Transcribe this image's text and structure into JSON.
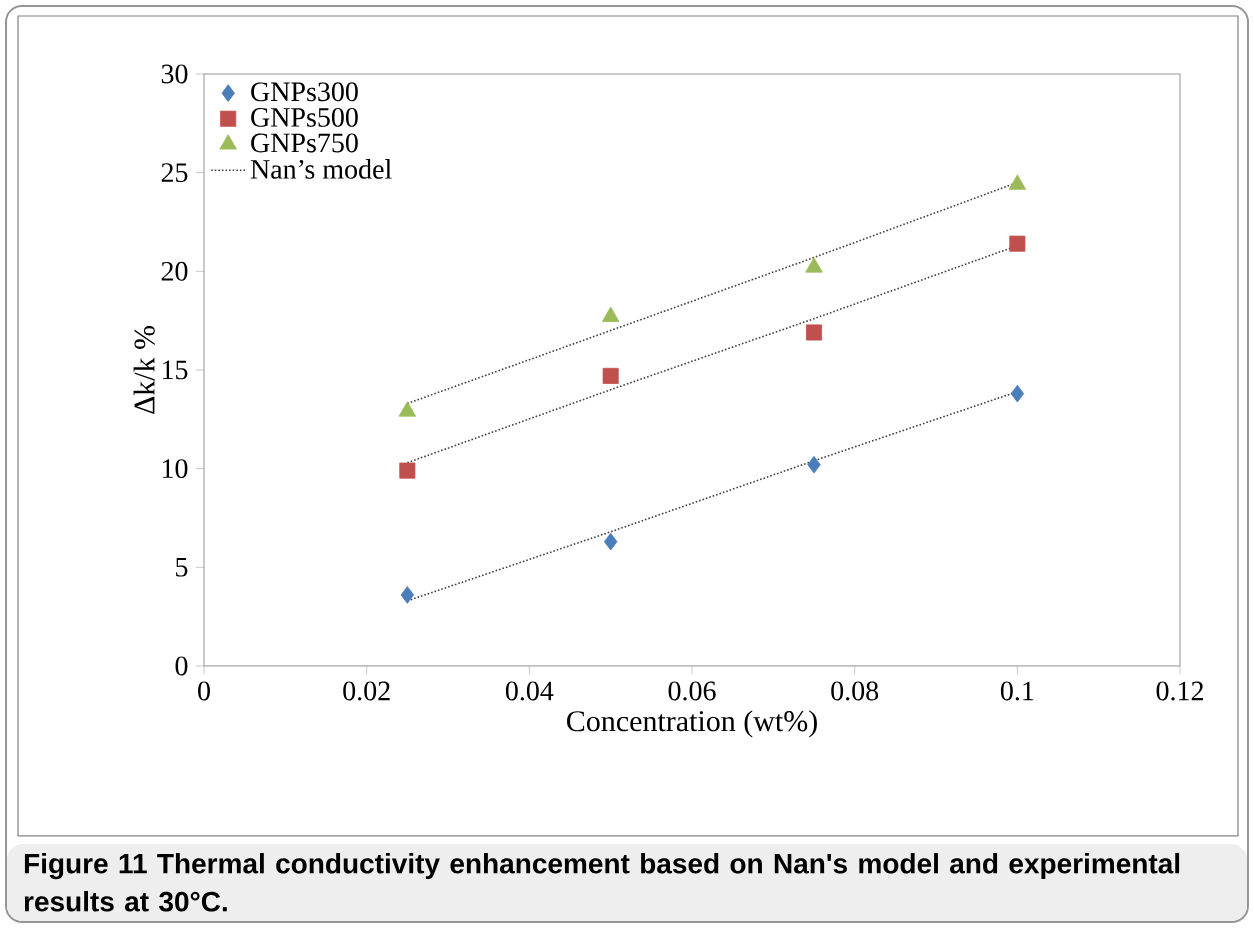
{
  "chart_data": {
    "type": "scatter",
    "xlabel": "Concentration (wt%)",
    "ylabel": "Δk/k %",
    "x": [
      0.025,
      0.05,
      0.075,
      0.1
    ],
    "series": [
      {
        "name": "GNPs300",
        "color": "#4a7ebb",
        "marker": "diamond",
        "values": [
          3.6,
          6.3,
          10.2,
          13.8
        ]
      },
      {
        "name": "GNPs500",
        "color": "#c0504d",
        "marker": "square",
        "values": [
          9.9,
          14.7,
          16.9,
          21.4
        ]
      },
      {
        "name": "GNPs750",
        "color": "#9bbb59",
        "marker": "triangle",
        "values": [
          12.9,
          17.7,
          20.2,
          24.4
        ]
      },
      {
        "name": "Nan’s model",
        "type": "line",
        "color": "#404040",
        "line_style": "dotted",
        "marker": "none",
        "values": [
          3.3,
          6.8,
          10.4,
          13.9
        ]
      },
      {
        "type": "line",
        "color": "#404040",
        "line_style": "dotted",
        "marker": "none",
        "values": [
          10.3,
          14.0,
          17.6,
          21.3
        ]
      },
      {
        "type": "line",
        "color": "#404040",
        "line_style": "dotted",
        "marker": "none",
        "values": [
          13.3,
          17.0,
          20.7,
          24.5
        ]
      }
    ],
    "xlim": [
      0,
      0.12
    ],
    "xticks": [
      0,
      0.02,
      0.04,
      0.06,
      0.08,
      0.1,
      0.12
    ],
    "ylim": [
      0,
      30
    ],
    "yticks": [
      0,
      5,
      10,
      15,
      20,
      25,
      30
    ],
    "legend": "top left",
    "annotations": [
      "Figure 11 Thermal conductivity enhancement based on Nan's model and experimental results at 30°C."
    ]
  }
}
